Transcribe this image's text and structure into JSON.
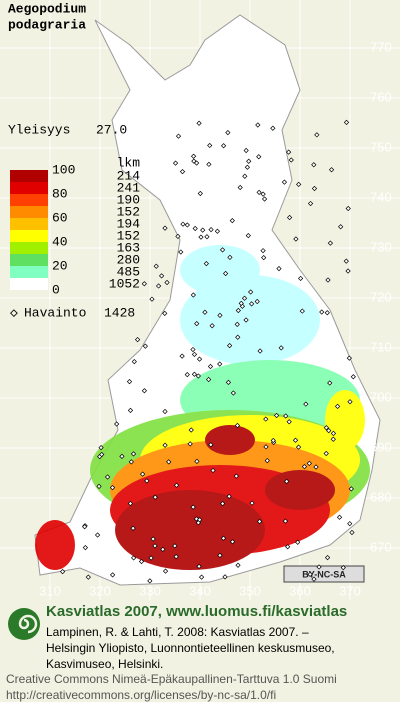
{
  "title": [
    "Aegopodium",
    "podagraria"
  ],
  "frequency": {
    "label": "Yleisyys",
    "value": "27.0"
  },
  "legend": {
    "header": "lkm",
    "classes": [
      "100",
      "80",
      "60",
      "40",
      "20",
      "0"
    ],
    "counts": [
      214,
      241,
      190,
      152,
      194,
      152,
      163,
      280,
      485,
      1052
    ],
    "colors": [
      "#b00000",
      "#e00000",
      "#ff4000",
      "#ff8c00",
      "#ffc000",
      "#ffff00",
      "#a0f000",
      "#60e060",
      "#80ffc0",
      "#ffffff"
    ]
  },
  "observations": {
    "label": "Havainto",
    "value": "1428"
  },
  "grid": {
    "north": [
      "770",
      "760",
      "750",
      "740",
      "730",
      "720",
      "710",
      "700",
      "690",
      "680",
      "670"
    ],
    "east": [
      "310",
      "320",
      "330",
      "340",
      "350",
      "360",
      "370"
    ]
  },
  "license_badge": "BY-NC-SA",
  "footer": {
    "heading": "Kasviatlas 2007, www.luomus.fi/kasviatlas",
    "citation": [
      "Lampinen, R. & Lahti, T. 2008: Kasviatlas 2007. –",
      "Helsingin Yliopisto, Luonnontieteellinen keskusmuseo,",
      "Kasvimuseo, Helsinki."
    ],
    "license": [
      "Creative Commons Nimeä-Epäkaupallinen-Tarttuva 1.0 Suomi",
      "http://creativecommons.org/licenses/by-nc-sa/1.0/fi"
    ]
  }
}
